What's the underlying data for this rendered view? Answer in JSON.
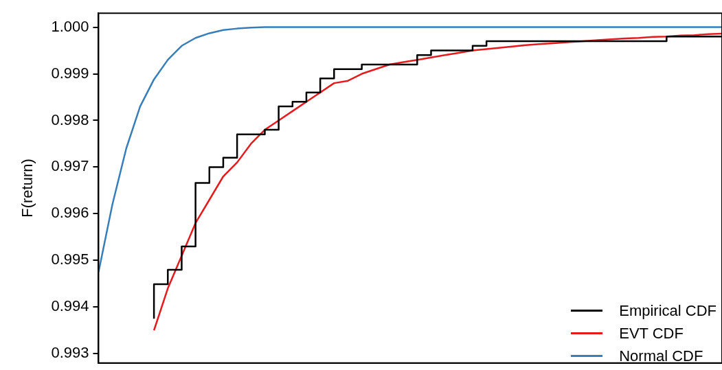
{
  "chart_data": {
    "type": "line",
    "ylabel": "F(return)",
    "categories": [
      null,
      null,
      null,
      null,
      null,
      null,
      null,
      null,
      null,
      null,
      null,
      null,
      null,
      null,
      null,
      null,
      null,
      null,
      null,
      null,
      null,
      null,
      null,
      null,
      null,
      null,
      null,
      null,
      null,
      null,
      null,
      null,
      null,
      null,
      null,
      null,
      null,
      null,
      null,
      null,
      null,
      null,
      null,
      null,
      null,
      null
    ],
    "series": [
      {
        "name": "Empirical CDF",
        "type": "step",
        "color": "#000000",
        "values": [
          null,
          null,
          null,
          null,
          0.99375,
          0.99449,
          0.9948,
          0.9953,
          0.99666,
          0.997,
          0.9972,
          0.9977,
          0.9977,
          0.9978,
          0.9983,
          0.9984,
          0.9986,
          0.9989,
          0.9991,
          0.9991,
          0.9992,
          0.9992,
          0.9992,
          0.9992,
          0.9994,
          0.9995,
          0.9995,
          0.9995,
          0.9996,
          0.9997,
          0.9997,
          0.9997,
          0.9997,
          0.9997,
          0.9997,
          0.9997,
          0.9997,
          0.9997,
          0.9997,
          0.9997,
          0.9997,
          0.9997,
          0.9998,
          0.9998,
          0.9998,
          0.9998
        ]
      },
      {
        "name": "EVT CDF",
        "type": "line",
        "color": "#e41a1c",
        "values": [
          null,
          null,
          null,
          null,
          0.9935,
          0.9944,
          0.9951,
          0.9958,
          0.9963,
          0.9968,
          0.9971,
          0.9975,
          0.9978,
          0.998,
          0.9982,
          0.9984,
          0.9986,
          0.9988,
          0.99885,
          0.999,
          0.9991,
          0.9992,
          0.99925,
          0.9993,
          0.99935,
          0.9994,
          0.99945,
          0.9995,
          0.99953,
          0.99956,
          0.99959,
          0.99962,
          0.99964,
          0.99966,
          0.99968,
          0.9997,
          0.99972,
          0.99974,
          0.99976,
          0.99977,
          0.99979,
          0.9998,
          0.99982,
          0.99983,
          0.99985,
          0.99986
        ]
      },
      {
        "name": "Normal CDF",
        "type": "line",
        "color": "#377eb8",
        "values": [
          0.99475,
          0.9962,
          0.9974,
          0.9983,
          0.99888,
          0.9993,
          0.9996,
          0.99977,
          0.99987,
          0.99994,
          0.99997,
          0.99999,
          1.0,
          1.0,
          1.0,
          1.0,
          1.0,
          1.0,
          1.0,
          1.0,
          1.0,
          1.0,
          1.0,
          1.0,
          1.0,
          1.0,
          1.0,
          1.0,
          1.0,
          1.0,
          1.0,
          1.0,
          1.0,
          1.0,
          1.0,
          1.0,
          1.0,
          1.0,
          1.0,
          1.0,
          1.0,
          1.0,
          1.0,
          1.0,
          1.0,
          1.0
        ]
      }
    ],
    "ylim": [
      0.9928,
      1.0003
    ],
    "yticks": [
      {
        "value": 0.993,
        "label": "0.993"
      },
      {
        "value": 0.994,
        "label": "0.994"
      },
      {
        "value": 0.995,
        "label": "0.995"
      },
      {
        "value": 0.996,
        "label": "0.996"
      },
      {
        "value": 0.997,
        "label": "0.997"
      },
      {
        "value": 0.998,
        "label": "0.998"
      },
      {
        "value": 0.999,
        "label": "0.999"
      },
      {
        "value": 1.0,
        "label": "1.000"
      }
    ],
    "tick_labels": "y",
    "grid": false,
    "legend": "bottom right",
    "marker": "none",
    "line_style": "solid"
  }
}
